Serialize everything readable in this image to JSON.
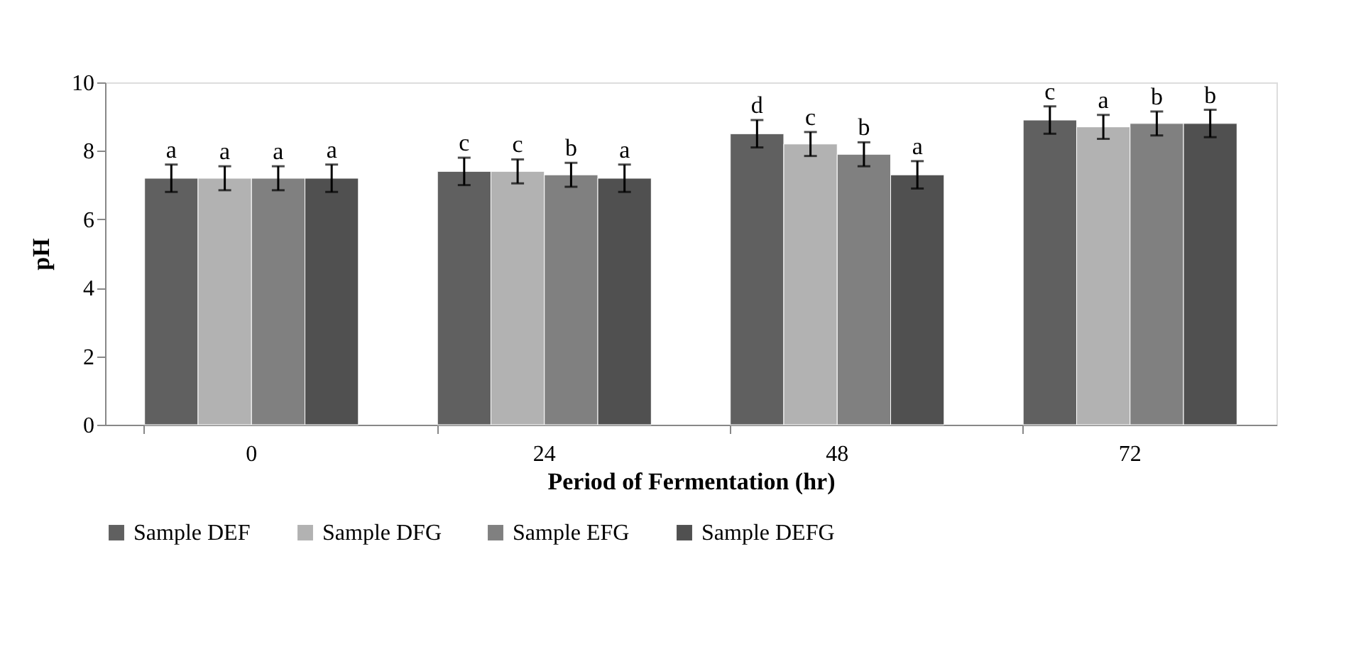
{
  "chart_data": {
    "type": "bar",
    "xlabel": "Period of Fermentation (hr)",
    "ylabel": "pH",
    "categories": [
      "0",
      "24",
      "48",
      "72"
    ],
    "series": [
      {
        "name": "Sample DEF",
        "color": "#606060",
        "values": [
          7.2,
          7.4,
          8.5,
          8.9
        ],
        "errors": [
          0.4,
          0.4,
          0.4,
          0.4
        ],
        "value_labels": [
          "a",
          "c",
          "d",
          "c"
        ]
      },
      {
        "name": "Sample DFG",
        "color": "#b2b2b2",
        "values": [
          7.2,
          7.4,
          8.2,
          8.7
        ],
        "errors": [
          0.35,
          0.35,
          0.35,
          0.35
        ],
        "value_labels": [
          "a",
          "c",
          "c",
          "a"
        ]
      },
      {
        "name": "Sample EFG",
        "color": "#808080",
        "values": [
          7.2,
          7.3,
          7.9,
          8.8
        ],
        "errors": [
          0.35,
          0.35,
          0.35,
          0.35
        ],
        "value_labels": [
          "a",
          "b",
          "b",
          "b"
        ]
      },
      {
        "name": "Sample DEFG",
        "color": "#505050",
        "values": [
          7.2,
          7.2,
          7.3,
          8.8
        ],
        "errors": [
          0.4,
          0.4,
          0.4,
          0.4
        ],
        "value_labels": [
          "a",
          "a",
          "a",
          "b"
        ]
      }
    ],
    "ylim": [
      0,
      10
    ],
    "yticks": [
      0,
      2,
      4,
      6,
      8,
      10
    ],
    "grid": false,
    "legend": "bottom"
  }
}
